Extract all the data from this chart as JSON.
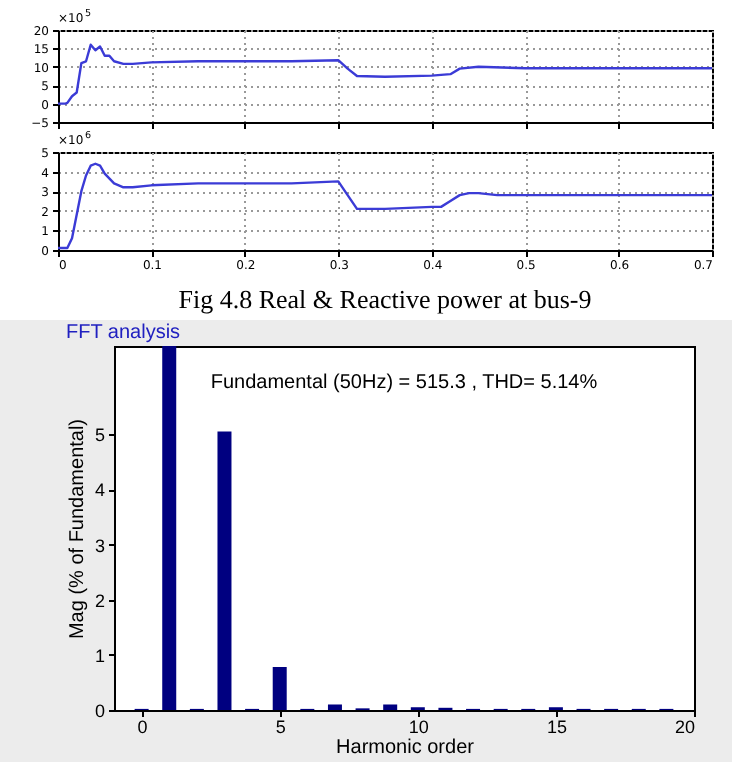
{
  "chart_data": [
    {
      "type": "line",
      "x": [
        0,
        0.008,
        0.01,
        0.015,
        0.02,
        0.025,
        0.03,
        0.035,
        0.04,
        0.045,
        0.05,
        0.055,
        0.06,
        0.07,
        0.08,
        0.1,
        0.15,
        0.2,
        0.25,
        0.3,
        0.31,
        0.32,
        0.35,
        0.4,
        0.42,
        0.43,
        0.45,
        0.5,
        0.6,
        0.7
      ],
      "series": [
        {
          "color": "#3b3bd6",
          "values": [
            0,
            0,
            0.2,
            2,
            3,
            11,
            11.5,
            16,
            14.5,
            15.5,
            13,
            13,
            11.5,
            10.8,
            10.8,
            11.2,
            11.5,
            11.5,
            11.5,
            11.8,
            9.5,
            7.5,
            7.3,
            7.6,
            8,
            9.5,
            10,
            9.6,
            9.6,
            9.6
          ]
        }
      ],
      "xlim": [
        0,
        0.7
      ],
      "xticks": [
        0,
        0.1,
        0.2,
        0.3,
        0.4,
        0.5,
        0.6,
        0.7
      ],
      "ylim": [
        -5,
        20
      ],
      "yticks": [
        -5,
        0,
        5,
        10,
        15,
        20
      ],
      "grid": true,
      "tick_labels": "y",
      "annotations": [
        "×10$^{5}$"
      ]
    },
    {
      "type": "line",
      "x": [
        0,
        0.01,
        0.015,
        0.02,
        0.025,
        0.03,
        0.035,
        0.04,
        0.045,
        0.05,
        0.06,
        0.07,
        0.08,
        0.1,
        0.15,
        0.2,
        0.25,
        0.3,
        0.31,
        0.32,
        0.35,
        0.4,
        0.41,
        0.42,
        0.43,
        0.44,
        0.45,
        0.47,
        0.5,
        0.6,
        0.7
      ],
      "series": [
        {
          "color": "#3b3bd6",
          "values": [
            0.1,
            0.1,
            0.6,
            1.8,
            3,
            3.8,
            4.3,
            4.4,
            4.3,
            3.9,
            3.4,
            3.2,
            3.2,
            3.3,
            3.4,
            3.4,
            3.4,
            3.5,
            2.8,
            2.1,
            2.1,
            2.2,
            2.2,
            2.5,
            2.8,
            2.9,
            2.9,
            2.8,
            2.8,
            2.8,
            2.8
          ]
        }
      ],
      "xlim": [
        0,
        0.7
      ],
      "xticks": [
        0,
        0.1,
        0.2,
        0.3,
        0.4,
        0.5,
        0.6,
        0.7
      ],
      "ylim": [
        0,
        5
      ],
      "yticks": [
        0,
        1,
        2,
        3,
        4,
        5
      ],
      "grid": true,
      "annotations": [
        "×10$^{6}$",
        "Fig 4.8 Real & Reactive power at bus-9"
      ]
    },
    {
      "type": "bar",
      "title": "FFT analysis",
      "subtitle": "Fundamental (50Hz) = 515.3 , THD= 5.14%",
      "xlabel": "Harmonic order",
      "ylabel": "Mag (% of Fundamental)",
      "x": [
        0,
        1,
        2,
        3,
        4,
        5,
        6,
        7,
        8,
        9,
        10,
        11,
        12,
        13,
        14,
        15,
        16,
        17,
        18,
        19
      ],
      "series": [
        {
          "color": "#000080",
          "values": [
            0.02,
            6.6,
            0.02,
            5.05,
            0.02,
            0.78,
            0.02,
            0.1,
            0.03,
            0.1,
            0.05,
            0.04,
            0.02,
            0.02,
            0.02,
            0.05,
            0.02,
            0.02,
            0.02,
            0.02
          ]
        }
      ],
      "xlim": [
        -1,
        20
      ],
      "xticks": [
        0,
        5,
        10,
        15,
        20
      ],
      "ylim": [
        0,
        6.6
      ],
      "yticks": [
        0,
        1,
        2,
        3,
        4,
        5
      ],
      "grid": false
    }
  ]
}
